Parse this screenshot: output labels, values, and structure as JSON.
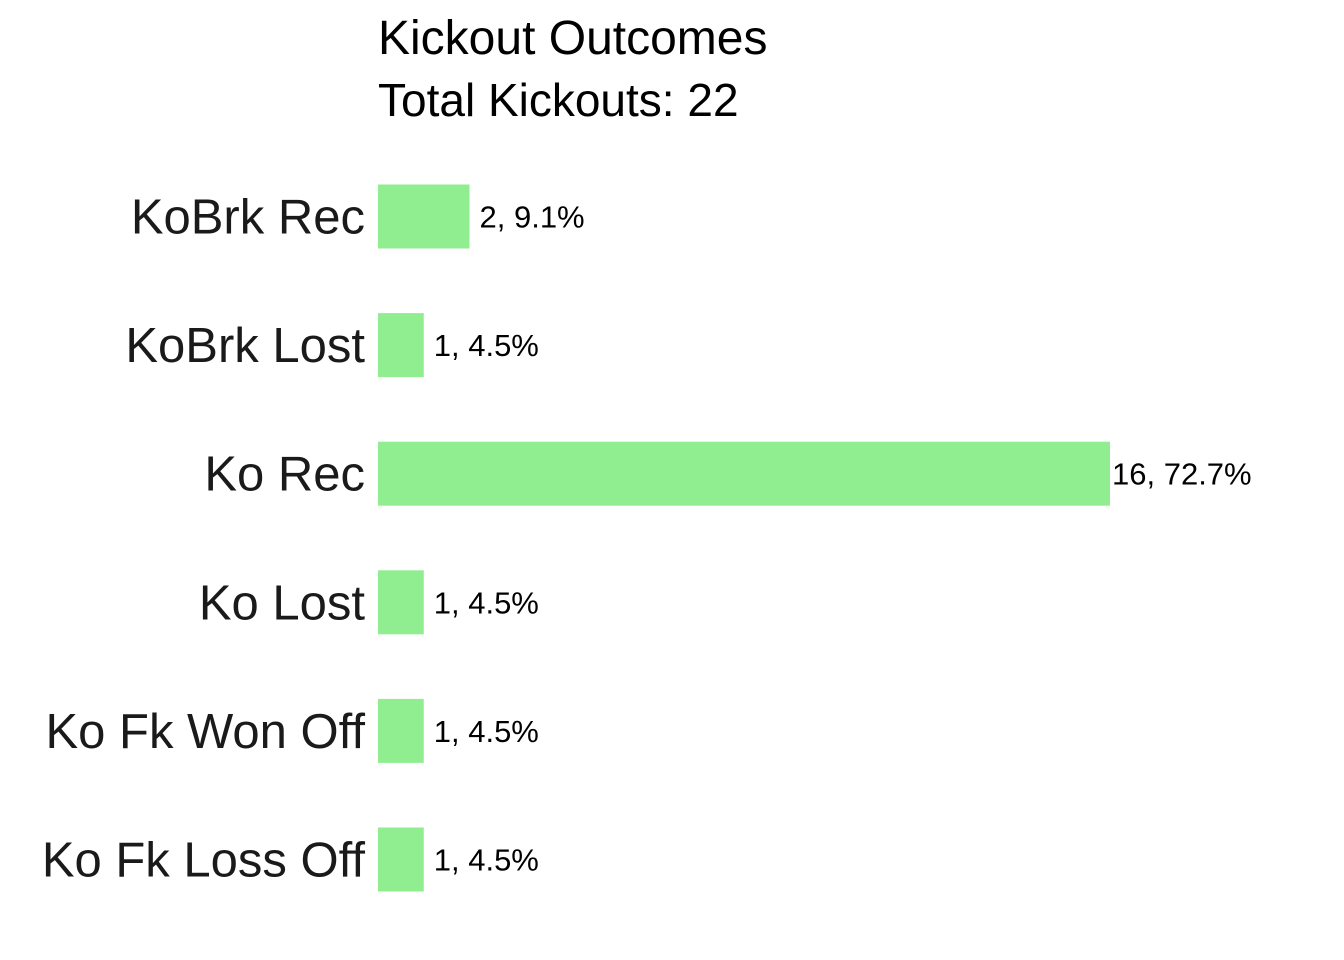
{
  "chart_data": {
    "type": "bar",
    "orientation": "horizontal",
    "title": "Kickout Outcomes",
    "subtitle": "Total Kickouts: 22",
    "categories": [
      "KoBrk Rec",
      "KoBrk Lost",
      "Ko Rec",
      "Ko Lost",
      "Ko Fk Won Off",
      "Ko Fk Loss Off"
    ],
    "values": [
      2,
      1,
      16,
      1,
      1,
      1
    ],
    "data_labels": [
      "2, 9.1%",
      "1, 4.5%",
      "16, 72.7%",
      "1, 4.5%",
      "1, 4.5%",
      "1, 4.5%"
    ],
    "xlim": [
      0,
      16
    ],
    "grid": false,
    "legend": "none",
    "bar_color": "#90EE90"
  }
}
